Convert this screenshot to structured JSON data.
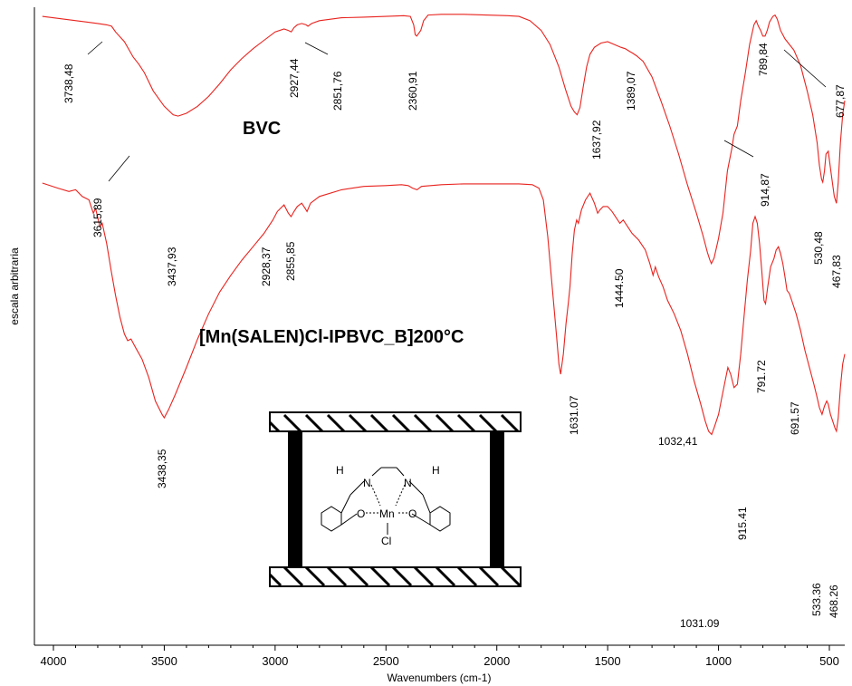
{
  "chart_data": {
    "type": "line",
    "xlabel": "Wavenumbers (cm-1)",
    "ylabel": "escala arbitraria",
    "xlim": [
      4050,
      430
    ],
    "x_reversed": true,
    "x_ticks": [
      4000,
      3500,
      3000,
      2500,
      2000,
      1500,
      1000,
      500
    ],
    "y_ticks": [],
    "grid": false,
    "legend": "none",
    "colors": {
      "trace": "#e8231e",
      "axis": "#000000"
    },
    "series": [
      {
        "name": "BVC",
        "points": [
          [
            4050,
            0.02
          ],
          [
            3950,
            0.04
          ],
          [
            3850,
            0.06
          ],
          [
            3800,
            0.07
          ],
          [
            3760,
            0.08
          ],
          [
            3738,
            0.09
          ],
          [
            3720,
            0.13
          ],
          [
            3680,
            0.2
          ],
          [
            3640,
            0.31
          ],
          [
            3615,
            0.36
          ],
          [
            3590,
            0.42
          ],
          [
            3550,
            0.55
          ],
          [
            3500,
            0.66
          ],
          [
            3460,
            0.72
          ],
          [
            3438,
            0.73
          ],
          [
            3400,
            0.71
          ],
          [
            3350,
            0.66
          ],
          [
            3300,
            0.59
          ],
          [
            3250,
            0.5
          ],
          [
            3200,
            0.4
          ],
          [
            3150,
            0.32
          ],
          [
            3100,
            0.25
          ],
          [
            3050,
            0.19
          ],
          [
            3000,
            0.13
          ],
          [
            2960,
            0.11
          ],
          [
            2940,
            0.12
          ],
          [
            2927,
            0.13
          ],
          [
            2915,
            0.1
          ],
          [
            2900,
            0.08
          ],
          [
            2880,
            0.07
          ],
          [
            2860,
            0.08
          ],
          [
            2852,
            0.09
          ],
          [
            2835,
            0.07
          ],
          [
            2800,
            0.05
          ],
          [
            2700,
            0.03
          ],
          [
            2600,
            0.025
          ],
          [
            2500,
            0.02
          ],
          [
            2420,
            0.015
          ],
          [
            2390,
            0.02
          ],
          [
            2375,
            0.08
          ],
          [
            2368,
            0.15
          ],
          [
            2361,
            0.16
          ],
          [
            2352,
            0.14
          ],
          [
            2343,
            0.12
          ],
          [
            2330,
            0.05
          ],
          [
            2310,
            0.01
          ],
          [
            2250,
            0.005
          ],
          [
            2150,
            0.005
          ],
          [
            2050,
            0.01
          ],
          [
            1950,
            0.015
          ],
          [
            1900,
            0.02
          ],
          [
            1850,
            0.05
          ],
          [
            1800,
            0.12
          ],
          [
            1760,
            0.22
          ],
          [
            1720,
            0.38
          ],
          [
            1690,
            0.54
          ],
          [
            1665,
            0.66
          ],
          [
            1650,
            0.7
          ],
          [
            1638,
            0.72
          ],
          [
            1625,
            0.67
          ],
          [
            1610,
            0.52
          ],
          [
            1595,
            0.38
          ],
          [
            1580,
            0.29
          ],
          [
            1560,
            0.24
          ],
          [
            1530,
            0.21
          ],
          [
            1500,
            0.2
          ],
          [
            1470,
            0.22
          ],
          [
            1440,
            0.24
          ],
          [
            1420,
            0.25
          ],
          [
            1400,
            0.27
          ],
          [
            1389,
            0.28
          ],
          [
            1370,
            0.3
          ],
          [
            1340,
            0.34
          ],
          [
            1300,
            0.45
          ],
          [
            1260,
            0.62
          ],
          [
            1220,
            0.8
          ],
          [
            1180,
            1.0
          ],
          [
            1140,
            1.22
          ],
          [
            1100,
            1.42
          ],
          [
            1070,
            1.58
          ],
          [
            1050,
            1.7
          ],
          [
            1040,
            1.75
          ],
          [
            1032,
            1.78
          ],
          [
            1020,
            1.74
          ],
          [
            1000,
            1.6
          ],
          [
            980,
            1.42
          ],
          [
            960,
            1.12
          ],
          [
            940,
            0.96
          ],
          [
            930,
            0.86
          ],
          [
            915,
            0.8
          ],
          [
            900,
            0.62
          ],
          [
            880,
            0.43
          ],
          [
            860,
            0.22
          ],
          [
            840,
            0.08
          ],
          [
            830,
            0.05
          ],
          [
            820,
            0.09
          ],
          [
            810,
            0.12
          ],
          [
            800,
            0.16
          ],
          [
            790,
            0.16
          ],
          [
            780,
            0.12
          ],
          [
            770,
            0.06
          ],
          [
            755,
            0.02
          ],
          [
            745,
            0.01
          ],
          [
            735,
            0.04
          ],
          [
            720,
            0.12
          ],
          [
            700,
            0.18
          ],
          [
            680,
            0.22
          ],
          [
            660,
            0.26
          ],
          [
            630,
            0.37
          ],
          [
            600,
            0.55
          ],
          [
            575,
            0.72
          ],
          [
            555,
            0.92
          ],
          [
            545,
            1.08
          ],
          [
            535,
            1.18
          ],
          [
            530,
            1.2
          ],
          [
            522,
            1.12
          ],
          [
            515,
            1.0
          ],
          [
            505,
            0.98
          ],
          [
            495,
            1.1
          ],
          [
            485,
            1.22
          ],
          [
            478,
            1.3
          ],
          [
            468,
            1.35
          ],
          [
            460,
            1.2
          ],
          [
            450,
            0.92
          ],
          [
            440,
            0.72
          ],
          [
            430,
            0.62
          ]
        ]
      },
      {
        "name": "[Mn(SALEN)Cl-IPBVC_B]200°C",
        "points": [
          [
            4050,
            0.0
          ],
          [
            3980,
            0.03
          ],
          [
            3930,
            0.05
          ],
          [
            3900,
            0.04
          ],
          [
            3870,
            0.08
          ],
          [
            3840,
            0.1
          ],
          [
            3820,
            0.18
          ],
          [
            3810,
            0.15
          ],
          [
            3790,
            0.26
          ],
          [
            3780,
            0.24
          ],
          [
            3760,
            0.36
          ],
          [
            3740,
            0.52
          ],
          [
            3720,
            0.67
          ],
          [
            3700,
            0.8
          ],
          [
            3680,
            0.9
          ],
          [
            3665,
            0.94
          ],
          [
            3650,
            0.93
          ],
          [
            3630,
            0.98
          ],
          [
            3600,
            1.05
          ],
          [
            3570,
            1.16
          ],
          [
            3540,
            1.3
          ],
          [
            3510,
            1.38
          ],
          [
            3500,
            1.4
          ],
          [
            3480,
            1.35
          ],
          [
            3450,
            1.26
          ],
          [
            3400,
            1.1
          ],
          [
            3350,
            0.93
          ],
          [
            3300,
            0.78
          ],
          [
            3250,
            0.65
          ],
          [
            3200,
            0.55
          ],
          [
            3150,
            0.46
          ],
          [
            3100,
            0.38
          ],
          [
            3050,
            0.3
          ],
          [
            3010,
            0.22
          ],
          [
            2990,
            0.17
          ],
          [
            2960,
            0.13
          ],
          [
            2940,
            0.18
          ],
          [
            2928,
            0.2
          ],
          [
            2915,
            0.17
          ],
          [
            2900,
            0.14
          ],
          [
            2880,
            0.12
          ],
          [
            2865,
            0.15
          ],
          [
            2856,
            0.17
          ],
          [
            2840,
            0.12
          ],
          [
            2800,
            0.08
          ],
          [
            2700,
            0.04
          ],
          [
            2600,
            0.02
          ],
          [
            2500,
            0.015
          ],
          [
            2430,
            0.01
          ],
          [
            2400,
            0.015
          ],
          [
            2380,
            0.03
          ],
          [
            2360,
            0.04
          ],
          [
            2340,
            0.02
          ],
          [
            2250,
            0.01
          ],
          [
            2150,
            0.005
          ],
          [
            2000,
            0.005
          ],
          [
            1900,
            0.005
          ],
          [
            1840,
            0.01
          ],
          [
            1810,
            0.03
          ],
          [
            1790,
            0.1
          ],
          [
            1770,
            0.32
          ],
          [
            1750,
            0.62
          ],
          [
            1730,
            0.92
          ],
          [
            1720,
            1.08
          ],
          [
            1712,
            1.14
          ],
          [
            1700,
            1.02
          ],
          [
            1688,
            0.84
          ],
          [
            1678,
            0.72
          ],
          [
            1670,
            0.62
          ],
          [
            1660,
            0.42
          ],
          [
            1650,
            0.28
          ],
          [
            1640,
            0.22
          ],
          [
            1632,
            0.24
          ],
          [
            1618,
            0.16
          ],
          [
            1600,
            0.1
          ],
          [
            1580,
            0.06
          ],
          [
            1560,
            0.12
          ],
          [
            1545,
            0.18
          ],
          [
            1535,
            0.16
          ],
          [
            1520,
            0.14
          ],
          [
            1500,
            0.14
          ],
          [
            1480,
            0.17
          ],
          [
            1460,
            0.21
          ],
          [
            1445,
            0.24
          ],
          [
            1430,
            0.22
          ],
          [
            1410,
            0.26
          ],
          [
            1390,
            0.3
          ],
          [
            1360,
            0.34
          ],
          [
            1330,
            0.4
          ],
          [
            1310,
            0.48
          ],
          [
            1295,
            0.55
          ],
          [
            1285,
            0.5
          ],
          [
            1270,
            0.56
          ],
          [
            1250,
            0.62
          ],
          [
            1230,
            0.7
          ],
          [
            1200,
            0.78
          ],
          [
            1170,
            0.88
          ],
          [
            1140,
            1.02
          ],
          [
            1110,
            1.18
          ],
          [
            1080,
            1.32
          ],
          [
            1060,
            1.42
          ],
          [
            1045,
            1.48
          ],
          [
            1031,
            1.5
          ],
          [
            1020,
            1.46
          ],
          [
            1000,
            1.38
          ],
          [
            985,
            1.28
          ],
          [
            970,
            1.18
          ],
          [
            958,
            1.1
          ],
          [
            945,
            1.14
          ],
          [
            930,
            1.22
          ],
          [
            915,
            1.2
          ],
          [
            900,
            1.02
          ],
          [
            885,
            0.8
          ],
          [
            870,
            0.58
          ],
          [
            855,
            0.4
          ],
          [
            845,
            0.24
          ],
          [
            835,
            0.2
          ],
          [
            825,
            0.24
          ],
          [
            815,
            0.36
          ],
          [
            805,
            0.52
          ],
          [
            795,
            0.7
          ],
          [
            788,
            0.72
          ],
          [
            778,
            0.62
          ],
          [
            765,
            0.5
          ],
          [
            750,
            0.45
          ],
          [
            740,
            0.4
          ],
          [
            730,
            0.38
          ],
          [
            720,
            0.42
          ],
          [
            710,
            0.48
          ],
          [
            700,
            0.56
          ],
          [
            691,
            0.64
          ],
          [
            680,
            0.66
          ],
          [
            670,
            0.7
          ],
          [
            650,
            0.78
          ],
          [
            630,
            0.88
          ],
          [
            610,
            1.0
          ],
          [
            590,
            1.1
          ],
          [
            570,
            1.2
          ],
          [
            555,
            1.28
          ],
          [
            545,
            1.34
          ],
          [
            533,
            1.38
          ],
          [
            522,
            1.33
          ],
          [
            512,
            1.3
          ],
          [
            505,
            1.32
          ],
          [
            495,
            1.38
          ],
          [
            485,
            1.42
          ],
          [
            475,
            1.46
          ],
          [
            468,
            1.48
          ],
          [
            460,
            1.4
          ],
          [
            450,
            1.22
          ],
          [
            440,
            1.08
          ],
          [
            430,
            1.02
          ]
        ]
      }
    ],
    "annotations": {
      "bvc_title": "BVC",
      "mn_title": "[Mn(SALEN)Cl-IPBVC_B]200°C",
      "bvc_peaks": [
        "3738,48",
        "3615,89",
        "3437,93",
        "2927,44",
        "2851,76",
        "2360,91",
        "1637,92",
        "1389,07",
        "914,87",
        "789,84",
        "677,87",
        "530,48",
        "467,83"
      ],
      "bvc_peak_1032": "1032,41",
      "mn_peaks": [
        "3438,35",
        "2928,37",
        "2855,85",
        "1631.07",
        "1444.50",
        "1031.09",
        "915.41",
        "791.72",
        "691.57",
        "533.36",
        "468.26"
      ],
      "tick_labels": [
        "4000",
        "3500",
        "3000",
        "2500",
        "2000",
        "1500",
        "1000",
        "500"
      ]
    },
    "inset": {
      "description_icon": "mn-salen-complex-in-pillared-clay-icon",
      "atom_labels": [
        "H",
        "N",
        "N",
        "H",
        "Mn",
        "O",
        "O",
        "Cl"
      ]
    }
  }
}
